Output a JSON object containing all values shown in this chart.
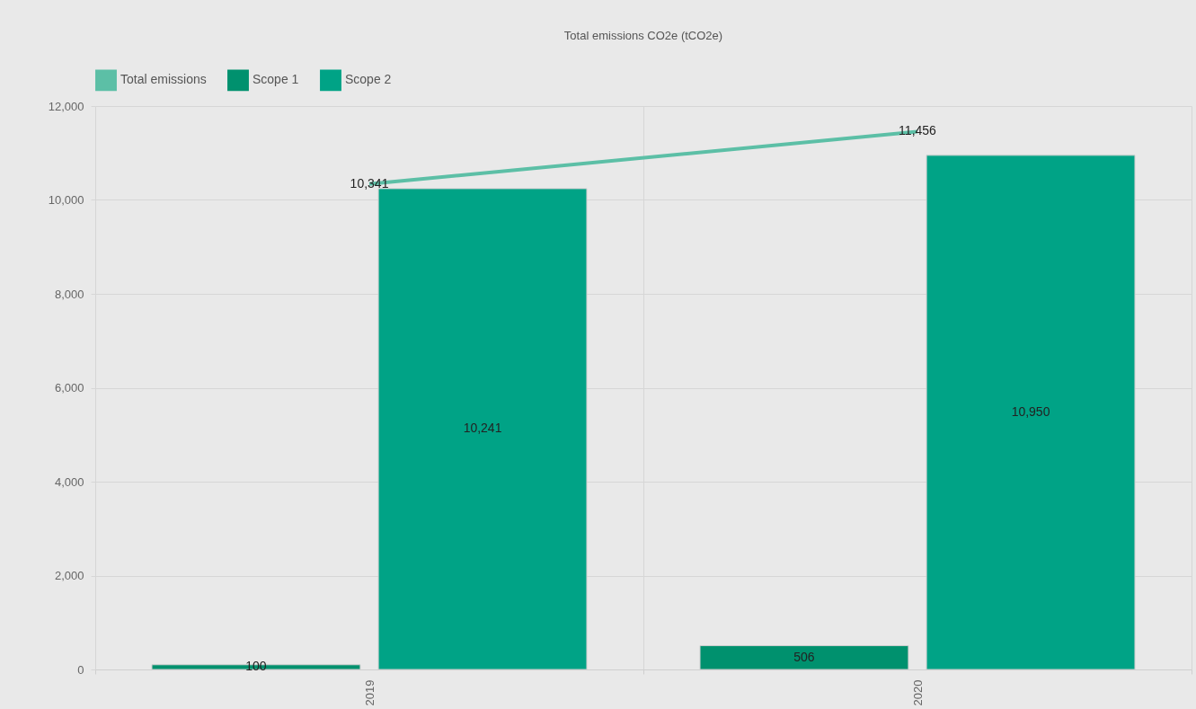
{
  "chart_data": {
    "type": "bar",
    "title": "Total emissions CO2e (tCO2e)",
    "categories": [
      "2019",
      "2020"
    ],
    "series": [
      {
        "name": "Total emissions",
        "type": "line",
        "color": "#5cbfa6",
        "values": [
          10341,
          11456
        ],
        "value_labels": [
          "10,341",
          "11,456"
        ]
      },
      {
        "name": "Scope 1",
        "color": "#00916e",
        "values": [
          100,
          506
        ],
        "value_labels": [
          "100",
          "506"
        ]
      },
      {
        "name": "Scope 2",
        "color": "#00a386",
        "values": [
          10241,
          10950
        ],
        "value_labels": [
          "10,241",
          "10,950"
        ]
      }
    ],
    "ylim": [
      0,
      12000
    ],
    "yticks": [
      0,
      {
        "value": 2000,
        "label": "2,000"
      },
      {
        "value": 4000,
        "label": "4,000"
      },
      {
        "value": 6000,
        "label": "6,000"
      },
      {
        "value": 8000,
        "label": "8,000"
      },
      {
        "value": 10000,
        "label": "10,000"
      },
      {
        "value": 12000,
        "label": "12,000"
      }
    ],
    "grid": true,
    "legend": "top"
  }
}
